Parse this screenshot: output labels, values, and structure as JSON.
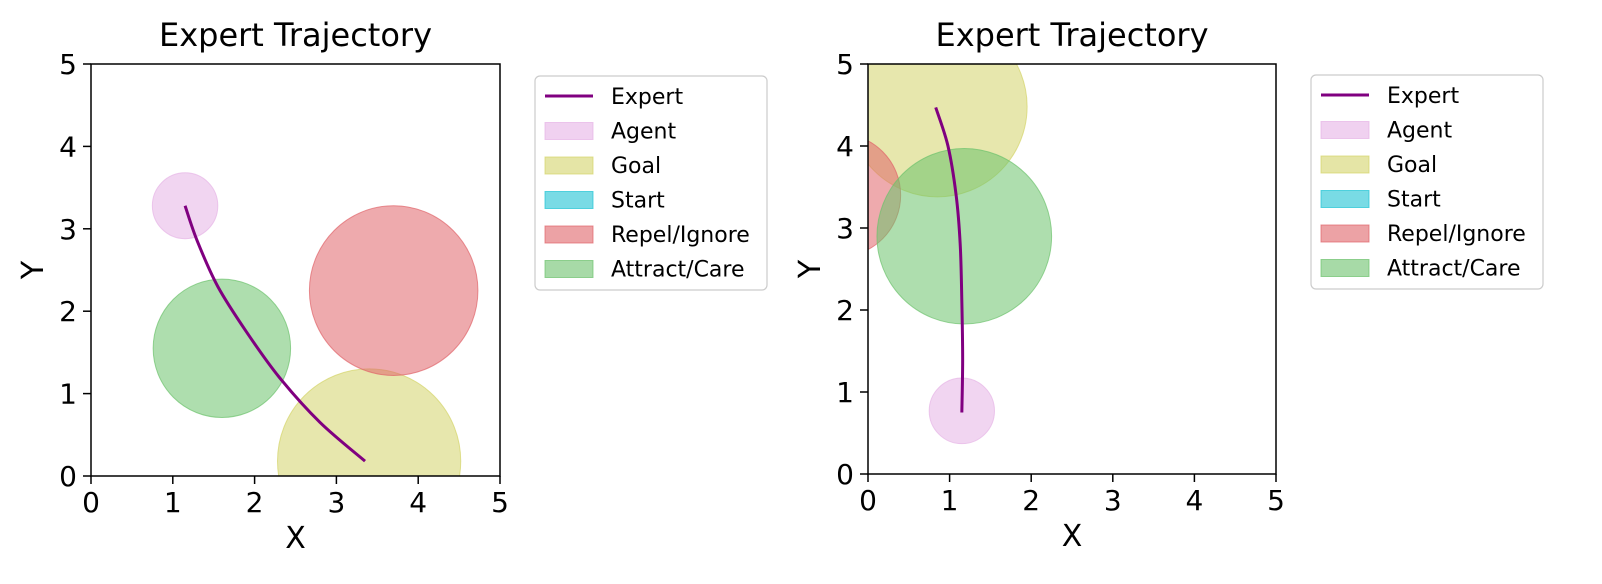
{
  "chart_data": [
    {
      "type": "scatter",
      "title": "Expert Trajectory",
      "xlabel": "X",
      "ylabel": "Y",
      "xlim": [
        0,
        5
      ],
      "ylim": [
        0,
        5
      ],
      "xticks": [
        "0",
        "1",
        "2",
        "3",
        "4",
        "5"
      ],
      "yticks": [
        "0",
        "1",
        "2",
        "3",
        "4",
        "5"
      ],
      "legend": [
        "Expert",
        "Agent",
        "Goal",
        "Start",
        "Repel/Ignore",
        "Attract/Care"
      ],
      "legend_placement": "outside-right",
      "trajectory": [
        [
          1.15,
          3.28
        ],
        [
          1.3,
          2.85
        ],
        [
          1.55,
          2.3
        ],
        [
          1.9,
          1.75
        ],
        [
          2.3,
          1.2
        ],
        [
          2.8,
          0.65
        ],
        [
          3.35,
          0.18
        ]
      ],
      "circles": [
        {
          "kind": "Agent",
          "cx": 1.15,
          "cy": 3.28,
          "r": 0.4
        },
        {
          "kind": "Attract/Care",
          "cx": 1.6,
          "cy": 1.55,
          "r": 0.84
        },
        {
          "kind": "Repel/Ignore",
          "cx": 3.7,
          "cy": 2.25,
          "r": 1.03
        },
        {
          "kind": "Goal",
          "cx": 3.4,
          "cy": 0.18,
          "r": 1.12
        }
      ]
    },
    {
      "type": "scatter",
      "title": "Expert Trajectory",
      "xlabel": "X",
      "ylabel": "Y",
      "xlim": [
        0,
        5
      ],
      "ylim": [
        0,
        5
      ],
      "xticks": [
        "0",
        "1",
        "2",
        "3",
        "4",
        "5"
      ],
      "yticks": [
        "0",
        "1",
        "2",
        "3",
        "4",
        "5"
      ],
      "legend": [
        "Expert",
        "Agent",
        "Goal",
        "Start",
        "Repel/Ignore",
        "Attract/Care"
      ],
      "legend_placement": "outside-right",
      "trajectory": [
        [
          0.83,
          4.47
        ],
        [
          0.98,
          4.0
        ],
        [
          1.08,
          3.4
        ],
        [
          1.13,
          2.8
        ],
        [
          1.15,
          2.1
        ],
        [
          1.16,
          1.4
        ],
        [
          1.15,
          0.75
        ]
      ],
      "circles": [
        {
          "kind": "Agent",
          "cx": 1.15,
          "cy": 0.77,
          "r": 0.4
        },
        {
          "kind": "Goal",
          "cx": 0.85,
          "cy": 4.48,
          "r": 1.1
        },
        {
          "kind": "Repel/Ignore",
          "cx": -0.35,
          "cy": 3.4,
          "r": 0.75
        },
        {
          "kind": "Attract/Care",
          "cx": 1.18,
          "cy": 2.9,
          "r": 1.07
        }
      ]
    }
  ],
  "colors": {
    "Expert": "#800080",
    "Agent": "#e6b3e6",
    "Goal": "#d4d46a",
    "Start": "#1fc3d4",
    "Repel/Ignore": "#e06469",
    "Attract/Care": "#6cc26c"
  }
}
